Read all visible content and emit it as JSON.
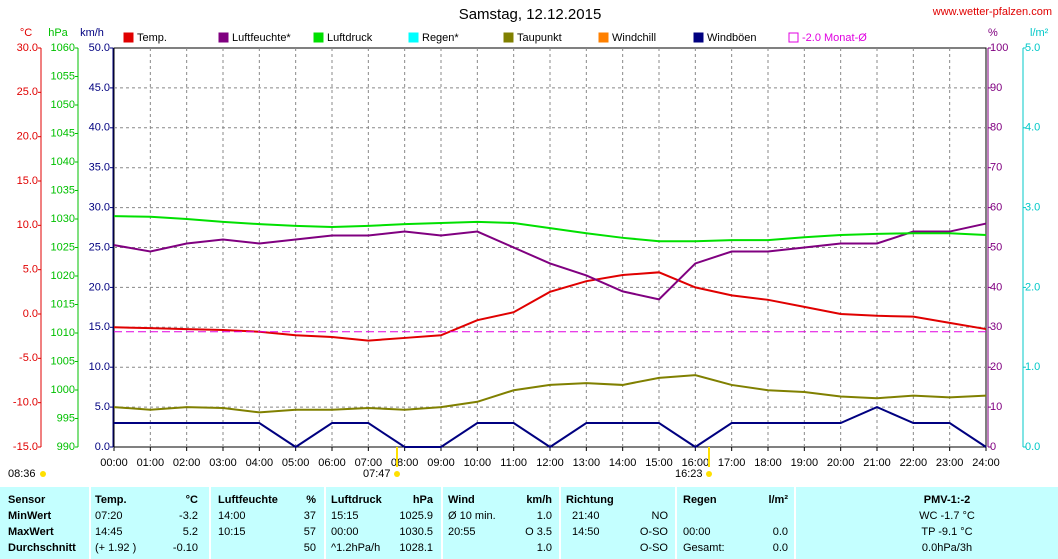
{
  "chart_data": {
    "type": "line",
    "title": "Samstag, 12.12.2015",
    "source": "www.wetter-pfalzen.com",
    "x": [
      0,
      1,
      2,
      3,
      4,
      5,
      6,
      7,
      8,
      9,
      10,
      11,
      12,
      13,
      14,
      15,
      16,
      17,
      18,
      19,
      20,
      21,
      22,
      23,
      24
    ],
    "xlim": [
      0,
      24
    ],
    "xticks": [
      {
        "value": 0,
        "label": "00:00"
      },
      {
        "value": 1,
        "label": "01:00"
      },
      {
        "value": 2,
        "label": "02:00"
      },
      {
        "value": 3,
        "label": "03:00"
      },
      {
        "value": 4,
        "label": "04:00"
      },
      {
        "value": 5,
        "label": "05:00"
      },
      {
        "value": 6,
        "label": "06:00"
      },
      {
        "value": 7,
        "label": "07:00"
      },
      {
        "value": 8,
        "label": "08:00"
      },
      {
        "value": 9,
        "label": "09:00"
      },
      {
        "value": 10,
        "label": "10:00"
      },
      {
        "value": 11,
        "label": "11:00"
      },
      {
        "value": 12,
        "label": "12:00"
      },
      {
        "value": 13,
        "label": "13:00"
      },
      {
        "value": 14,
        "label": "14:00"
      },
      {
        "value": 15,
        "label": "15:00"
      },
      {
        "value": 16,
        "label": "16:00"
      },
      {
        "value": 17,
        "label": "17:00"
      },
      {
        "value": 18,
        "label": "18:00"
      },
      {
        "value": 19,
        "label": "19:00"
      },
      {
        "value": 20,
        "label": "20:00"
      },
      {
        "value": 21,
        "label": "21:00"
      },
      {
        "value": 22,
        "label": "22:00"
      },
      {
        "value": 23,
        "label": "23:00"
      },
      {
        "value": 24,
        "label": "24:00"
      }
    ],
    "grid": true,
    "axes": [
      {
        "unit": "°C",
        "color": "#e00000",
        "lim": [
          -15,
          30
        ],
        "ticks": [
          {
            "value": -15,
            "label": "-15.0"
          },
          {
            "value": -10,
            "label": "-10.0"
          },
          {
            "value": -5,
            "label": "-5.0"
          },
          {
            "value": 0,
            "label": "0.0"
          },
          {
            "value": 5,
            "label": "5.0"
          },
          {
            "value": 10,
            "label": "10.0"
          },
          {
            "value": 15,
            "label": "15.0"
          },
          {
            "value": 20,
            "label": "20.0"
          },
          {
            "value": 25,
            "label": "25.0"
          },
          {
            "value": 30,
            "label": "30.0"
          }
        ]
      },
      {
        "unit": "hPa",
        "color": "#00c000",
        "lim": [
          990,
          1060
        ],
        "ticks": [
          990,
          995,
          1000,
          1005,
          1010,
          1015,
          1020,
          1025,
          1030,
          1035,
          1040,
          1045,
          1050,
          1055,
          1060
        ]
      },
      {
        "unit": "km/h",
        "color": "#000080",
        "lim": [
          0,
          50
        ],
        "ticks": [
          {
            "value": 0,
            "label": "0.0"
          },
          {
            "value": 5,
            "label": "5.0"
          },
          {
            "value": 10,
            "label": "10.0"
          },
          {
            "value": 15,
            "label": "15.0"
          },
          {
            "value": 20,
            "label": "20.0"
          },
          {
            "value": 25,
            "label": "25.0"
          },
          {
            "value": 30,
            "label": "30.0"
          },
          {
            "value": 35,
            "label": "35.0"
          },
          {
            "value": 40,
            "label": "40.0"
          },
          {
            "value": 45,
            "label": "45.0"
          },
          {
            "value": 50,
            "label": "50.0"
          }
        ],
        "grid": true
      },
      {
        "unit": "%",
        "color": "#800080",
        "lim": [
          0,
          100
        ],
        "ticks": [
          0,
          10,
          20,
          30,
          40,
          50,
          60,
          70,
          80,
          90,
          100
        ]
      },
      {
        "unit": "l/m²",
        "color": "#00c8c8",
        "lim": [
          0,
          5
        ],
        "ticks": [
          {
            "value": 0,
            "label": "0.0"
          },
          {
            "value": 1,
            "label": "1.0"
          },
          {
            "value": 2,
            "label": "2.0"
          },
          {
            "value": 3,
            "label": "3.0"
          },
          {
            "value": 4,
            "label": "4.0"
          },
          {
            "value": 5,
            "label": "5.0"
          }
        ]
      }
    ],
    "series": [
      {
        "name": "Temp.",
        "color": "#e00000",
        "axis": 0,
        "values": [
          -1.5,
          -1.6,
          -1.7,
          -1.8,
          -2.0,
          -2.4,
          -2.6,
          -3.0,
          -2.7,
          -2.4,
          -0.7,
          0.2,
          2.5,
          3.7,
          4.4,
          4.7,
          3.0,
          2.1,
          1.6,
          0.8,
          0.0,
          -0.2,
          -0.3,
          -1.0,
          -1.7
        ]
      },
      {
        "name": "Luftfeuchte*",
        "color": "#800080",
        "axis": 3,
        "values": [
          50.6,
          49,
          51,
          52,
          51,
          52,
          53,
          53,
          54,
          53,
          54,
          50,
          46,
          43,
          39,
          37,
          46,
          49,
          49,
          50,
          51,
          51,
          54,
          54,
          56
        ]
      },
      {
        "name": "Luftdruck",
        "color": "#00e000",
        "axis": 1,
        "values": [
          1030.5,
          1030.4,
          1030.0,
          1029.5,
          1029.1,
          1028.8,
          1028.6,
          1028.8,
          1029.1,
          1029.3,
          1029.5,
          1029.3,
          1028.4,
          1027.5,
          1026.7,
          1026.1,
          1026.1,
          1026.3,
          1026.3,
          1026.8,
          1027.2,
          1027.4,
          1027.5,
          1027.5,
          1027.2
        ]
      },
      {
        "name": "Regen*",
        "color": "#00ffff",
        "axis": 4,
        "values": null
      },
      {
        "name": "Taupunkt",
        "color": "#808000",
        "axis": 0,
        "values": [
          -10.5,
          -10.8,
          -10.5,
          -10.6,
          -11.1,
          -10.8,
          -10.8,
          -10.6,
          -10.8,
          -10.5,
          -9.9,
          -8.6,
          -8.0,
          -7.8,
          -8.0,
          -7.2,
          -6.9,
          -8.0,
          -8.6,
          -8.8,
          -9.3,
          -9.5,
          -9.2,
          -9.4,
          -9.2
        ]
      },
      {
        "name": "Windchill",
        "color": "#ff8000",
        "axis": 0,
        "values": null
      },
      {
        "name": "Windböen",
        "color": "#000080",
        "axis": 2,
        "values": [
          3,
          3,
          3,
          3,
          3,
          0,
          3,
          3,
          0,
          0,
          3,
          3,
          0,
          3,
          3,
          3,
          0,
          3,
          3,
          3,
          3,
          5,
          3,
          3,
          0
        ]
      },
      {
        "name": "-2.0 Monat-Ø",
        "color": "#e000e0",
        "axis": 0,
        "level": -2.0,
        "dash": true
      }
    ],
    "annotations": [
      "08:36",
      "07:47",
      "16:23"
    ]
  },
  "table": {
    "header": [
      "Sensor",
      "Temp.",
      "°C",
      "Luftfeuchte",
      "%",
      "Luftdruck",
      "hPa",
      "Wind",
      "km/h",
      "Richtung",
      null,
      "Regen",
      "l/m²",
      "PMV-1:-2"
    ],
    "rows": [
      [
        "MinWert",
        "07:20",
        "-3.2",
        "14:00",
        "37",
        "15:15",
        "1025.9",
        "Ø 10 min.",
        "1.0",
        "21:40",
        "NO",
        null,
        null,
        "WC -1.7 °C"
      ],
      [
        "MaxWert",
        "14:45",
        "5.2",
        "10:15",
        "57",
        "00:00",
        "1030.5",
        "20:55",
        "O 3.5",
        "14:50",
        "O-SO",
        "00:00",
        "0.0",
        "TP -9.1 °C"
      ],
      [
        "Durchschnitt",
        "(+ 1.92 )",
        "-0.10",
        null,
        "50",
        "^1.2hPa/h",
        "1028.1",
        null,
        "1.0",
        null,
        "O-SO",
        "Gesamt:",
        "0.0",
        "0.0hPa/3h"
      ]
    ]
  }
}
